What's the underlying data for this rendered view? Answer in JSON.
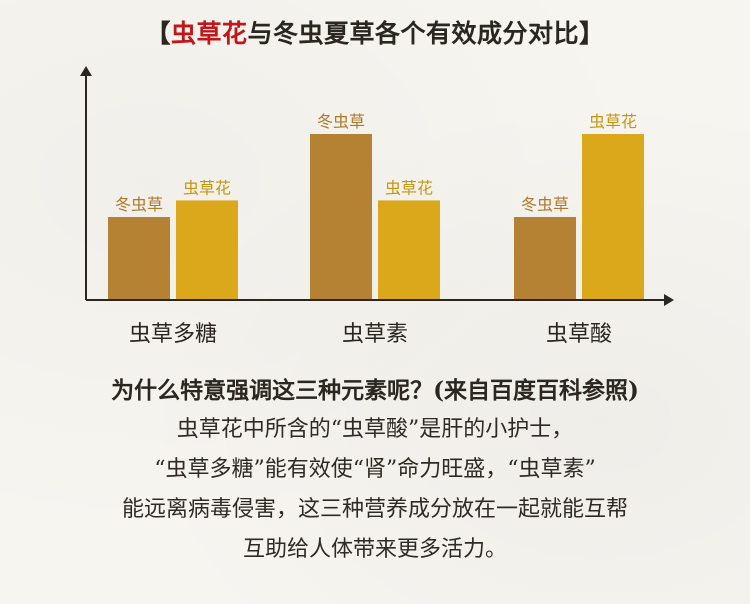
{
  "title": {
    "bracket_open": "【",
    "highlight": "虫草花",
    "rest": "与冬虫夏草各个有效成分对比",
    "bracket_close": "】"
  },
  "chart_data": {
    "type": "bar",
    "categories": [
      "虫草多糖",
      "虫草素",
      "虫草酸"
    ],
    "series": [
      {
        "name": "冬虫草",
        "values": [
          1,
          2,
          1
        ],
        "color": "#b58132"
      },
      {
        "name": "虫草花",
        "values": [
          1.2,
          1.2,
          2
        ],
        "color": "#dba81b"
      }
    ],
    "title": "",
    "xlabel": "",
    "ylabel": "",
    "ylim": [
      0,
      2.3
    ],
    "grid": false
  },
  "section_heading": "为什么特意强调这三种元素呢？(来自百度百科参照)",
  "paragraph_lines": [
    "虫草花中所含的“虫草酸”是肝的小护士，",
    "“虫草多糖”能有效使“肾”命力旺盛，“虫草素”",
    "能远离病毒侵害，这三种营养成分放在一起就能互帮",
    "互助给人体带来更多活力。"
  ],
  "colors": {
    "title_highlight": "#c0171b",
    "bar_label_winter": "#b0782a",
    "bar_label_flower": "#c9950e",
    "axis": "#2b2620"
  }
}
